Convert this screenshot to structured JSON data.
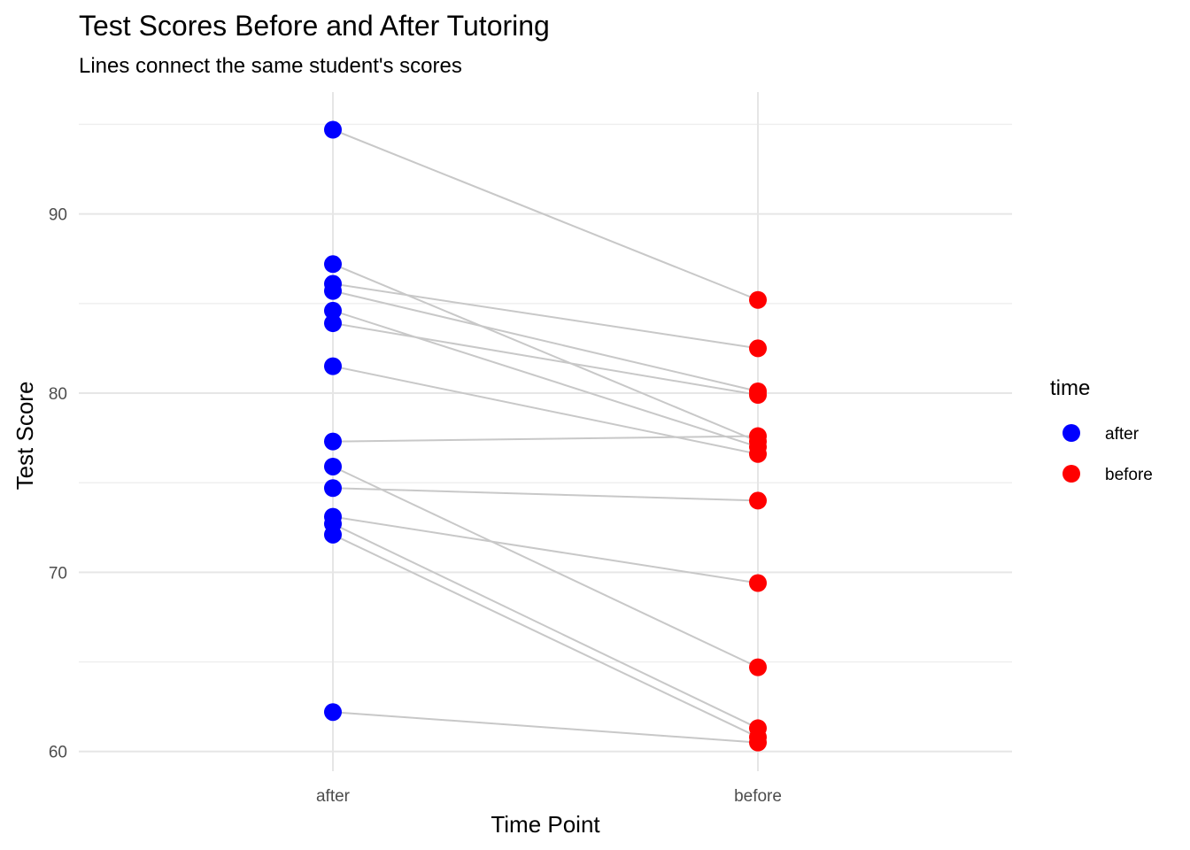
{
  "chart_data": {
    "type": "scatter",
    "title": "Test Scores Before and After Tutoring",
    "subtitle": "Lines connect the same student's scores",
    "xlabel": "Time Point",
    "ylabel": "Test Score",
    "categories": [
      "after",
      "before"
    ],
    "ylim": [
      58.9,
      96.8
    ],
    "y_ticks": [
      60,
      70,
      80,
      90
    ],
    "grid": true,
    "legend": {
      "title": "time",
      "placement": "right",
      "entries": [
        {
          "label": "after",
          "color": "#0000ff"
        },
        {
          "label": "before",
          "color": "#ff0000"
        }
      ]
    },
    "pair_line_color": "#c8c8c8",
    "series": [
      {
        "name": "after",
        "color": "#0000ff",
        "values": [
          94.7,
          87.2,
          86.1,
          85.7,
          84.6,
          83.9,
          81.5,
          77.3,
          75.9,
          74.7,
          73.1,
          72.7,
          72.1,
          62.2
        ]
      },
      {
        "name": "before",
        "color": "#ff0000",
        "values": [
          85.2,
          77.3,
          82.5,
          80.1,
          77.0,
          79.9,
          76.6,
          77.6,
          64.7,
          74.0,
          69.4,
          61.3,
          60.8,
          60.5
        ]
      }
    ]
  }
}
